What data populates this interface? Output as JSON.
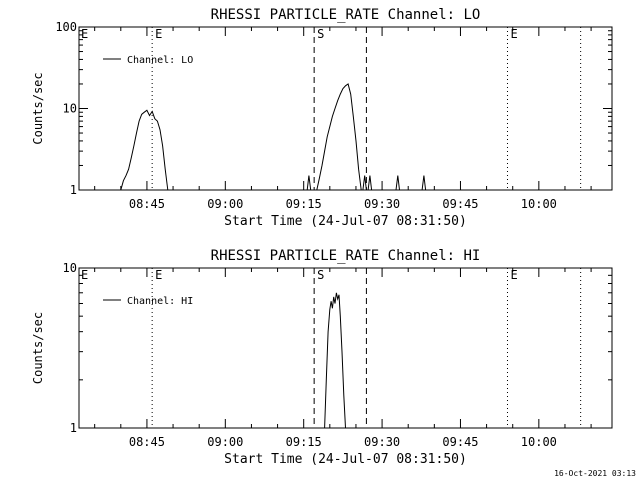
{
  "footer": {
    "timestamp": "16-Oct-2021 03:13"
  },
  "chart_data": [
    {
      "type": "line",
      "title": "RHESSI PARTICLE_RATE Channel: LO",
      "xlabel": "Start Time (24-Jul-07 08:31:50)",
      "ylabel": "Counts/sec",
      "y_scale": "log",
      "ylim": [
        1,
        100
      ],
      "yticks": [
        "1",
        "10",
        "100"
      ],
      "xlim": [
        "08:32",
        "10:14"
      ],
      "xticks": [
        "08:45",
        "09:00",
        "09:15",
        "09:30",
        "09:45",
        "10:00"
      ],
      "legend": {
        "position": "top-left",
        "label": "Channel: LO"
      },
      "markers": [
        {
          "time": "08:46",
          "style": "dotted",
          "label": "E"
        },
        {
          "time": "09:17",
          "style": "dashed",
          "label": "S"
        },
        {
          "time": "09:27",
          "style": "dashed",
          "label": ""
        },
        {
          "time": "09:54",
          "style": "dotted",
          "label": "E"
        },
        {
          "time": "10:08",
          "style": "dotted",
          "label": ""
        }
      ],
      "edge_label": "E",
      "series": [
        {
          "name": "Channel: LO",
          "segments": [
            [
              [
                "08:40",
                1.0
              ],
              [
                "08:40:30",
                1.3
              ],
              [
                "08:41",
                1.5
              ],
              [
                "08:41:30",
                1.8
              ],
              [
                "08:42",
                2.5
              ],
              [
                "08:42:30",
                3.5
              ],
              [
                "08:43",
                5.0
              ],
              [
                "08:43:30",
                7.0
              ],
              [
                "08:44",
                8.5
              ],
              [
                "08:44:30",
                9.0
              ],
              [
                "08:45",
                9.5
              ],
              [
                "08:45:30",
                8.2
              ],
              [
                "08:46",
                9.2
              ],
              [
                "08:46:30",
                7.5
              ],
              [
                "08:47",
                7.0
              ],
              [
                "08:47:30",
                5.5
              ],
              [
                "08:48",
                3.5
              ],
              [
                "08:48:30",
                1.8
              ],
              [
                "08:49",
                1.0
              ]
            ],
            [
              [
                "09:15:40",
                1.0
              ],
              [
                "09:16",
                1.5
              ],
              [
                "09:16:20",
                1.0
              ]
            ],
            [
              [
                "09:17:30",
                1.0
              ],
              [
                "09:18",
                1.4
              ],
              [
                "09:18:30",
                2.0
              ],
              [
                "09:19",
                3.0
              ],
              [
                "09:19:30",
                4.5
              ],
              [
                "09:20",
                6.0
              ],
              [
                "09:20:30",
                8.0
              ],
              [
                "09:21",
                10.0
              ],
              [
                "09:21:30",
                12.5
              ],
              [
                "09:22",
                15.0
              ],
              [
                "09:22:30",
                17.5
              ],
              [
                "09:23",
                19.0
              ],
              [
                "09:23:30",
                20.0
              ],
              [
                "09:24",
                15.0
              ],
              [
                "09:24:30",
                8.0
              ],
              [
                "09:25",
                4.0
              ],
              [
                "09:25:30",
                1.8
              ],
              [
                "09:26",
                1.0
              ]
            ],
            [
              [
                "09:26:20",
                1.0
              ],
              [
                "09:26:40",
                1.5
              ],
              [
                "09:27",
                1.0
              ]
            ],
            [
              [
                "09:27:20",
                1.0
              ],
              [
                "09:27:40",
                1.5
              ],
              [
                "09:28",
                1.0
              ]
            ],
            [
              [
                "09:32:40",
                1.0
              ],
              [
                "09:33",
                1.5
              ],
              [
                "09:33:20",
                1.0
              ]
            ],
            [
              [
                "09:37:40",
                1.0
              ],
              [
                "09:38",
                1.5
              ],
              [
                "09:38:20",
                1.0
              ]
            ]
          ]
        }
      ]
    },
    {
      "type": "line",
      "title": "RHESSI PARTICLE_RATE Channel: HI",
      "xlabel": "Start Time (24-Jul-07 08:31:50)",
      "ylabel": "Counts/sec",
      "y_scale": "log",
      "ylim": [
        1,
        10
      ],
      "yticks": [
        "1",
        "10"
      ],
      "xlim": [
        "08:32",
        "10:14"
      ],
      "xticks": [
        "08:45",
        "09:00",
        "09:15",
        "09:30",
        "09:45",
        "10:00"
      ],
      "legend": {
        "position": "top-left",
        "label": "Channel: HI"
      },
      "markers": [
        {
          "time": "08:46",
          "style": "dotted",
          "label": "E"
        },
        {
          "time": "09:17",
          "style": "dashed",
          "label": "S"
        },
        {
          "time": "09:27",
          "style": "dashed",
          "label": ""
        },
        {
          "time": "09:54",
          "style": "dotted",
          "label": "E"
        },
        {
          "time": "10:08",
          "style": "dotted",
          "label": ""
        }
      ],
      "edge_label": "E",
      "series": [
        {
          "name": "Channel: HI",
          "segments": [
            [
              [
                "09:19:00",
                1.0
              ],
              [
                "09:19:20",
                2.0
              ],
              [
                "09:19:40",
                4.0
              ],
              [
                "09:20:00",
                5.5
              ],
              [
                "09:20:15",
                6.2
              ],
              [
                "09:20:30",
                5.6
              ],
              [
                "09:20:45",
                6.6
              ],
              [
                "09:21:00",
                6.0
              ],
              [
                "09:21:15",
                7.0
              ],
              [
                "09:21:30",
                6.4
              ],
              [
                "09:21:45",
                6.8
              ],
              [
                "09:22:00",
                5.0
              ],
              [
                "09:22:20",
                3.0
              ],
              [
                "09:22:40",
                1.6
              ],
              [
                "09:23:00",
                1.0
              ]
            ]
          ]
        }
      ]
    }
  ]
}
